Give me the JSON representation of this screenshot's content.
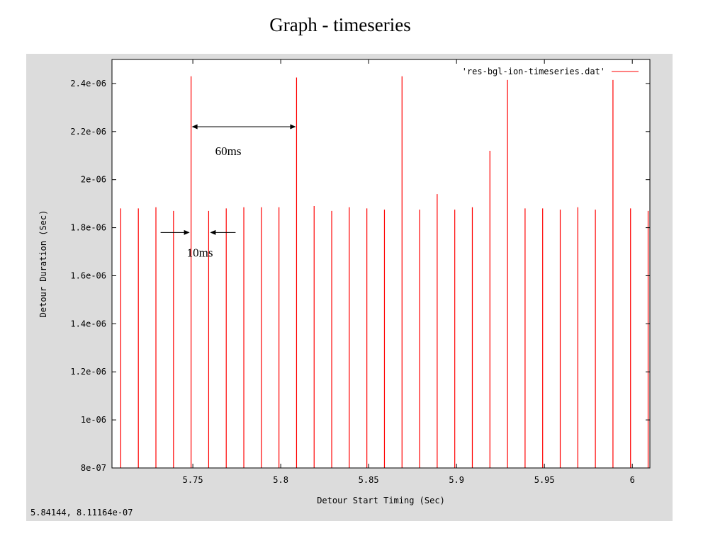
{
  "slide": {
    "title": "Graph - timeseries"
  },
  "status": {
    "coords": "5.84144,  8.11164e-07"
  },
  "colors": {
    "series": "#ff0000",
    "background": "#dcdcdc",
    "frame": "#000000"
  },
  "chart_data": {
    "type": "bar",
    "title": "",
    "xlabel": "Detour Start Timing (Sec)",
    "ylabel": "Detour Duration (Sec)",
    "xlim": [
      5.704,
      6.01
    ],
    "ylim": [
      8e-07,
      2.5e-06
    ],
    "xticks": [
      5.75,
      5.8,
      5.85,
      5.9,
      5.95,
      6
    ],
    "xtick_labels": [
      "5.75",
      "5.8",
      "5.85",
      "5.9",
      "5.95",
      "6"
    ],
    "yticks": [
      8e-07,
      1e-06,
      1.2e-06,
      1.4e-06,
      1.6e-06,
      1.8e-06,
      2e-06,
      2.2e-06,
      2.4e-06
    ],
    "ytick_labels": [
      "8e-07",
      "1e-06",
      "1.2e-06",
      "1.4e-06",
      "1.6e-06",
      "1.8e-06",
      "2e-06",
      "2.2e-06",
      "2.4e-06"
    ],
    "legend": {
      "position": "top-right",
      "label": "'res-bgl-ion-timeseries.dat'"
    },
    "series": [
      {
        "name": "'res-bgl-ion-timeseries.dat'",
        "x": [
          5.709,
          5.719,
          5.729,
          5.739,
          5.749,
          5.759,
          5.769,
          5.779,
          5.789,
          5.799,
          5.809,
          5.819,
          5.829,
          5.839,
          5.849,
          5.859,
          5.869,
          5.879,
          5.889,
          5.899,
          5.909,
          5.919,
          5.929,
          5.939,
          5.949,
          5.959,
          5.969,
          5.979,
          5.989,
          5.999,
          6.009
        ],
        "values": [
          1.88e-06,
          1.88e-06,
          1.885e-06,
          1.87e-06,
          2.43e-06,
          1.87e-06,
          1.88e-06,
          1.885e-06,
          1.885e-06,
          1.885e-06,
          2.425e-06,
          1.89e-06,
          1.87e-06,
          1.885e-06,
          1.88e-06,
          1.875e-06,
          2.43e-06,
          1.875e-06,
          1.94e-06,
          1.875e-06,
          1.885e-06,
          2.12e-06,
          2.415e-06,
          1.88e-06,
          1.88e-06,
          1.875e-06,
          1.885e-06,
          1.875e-06,
          2.415e-06,
          1.88e-06,
          1.87e-06
        ]
      }
    ],
    "annotations": [
      {
        "text": "60ms",
        "x_from": 5.749,
        "x_to": 5.809,
        "y": 2.22e-06,
        "arrow": "double"
      },
      {
        "text": "10ms",
        "x_from": 5.749,
        "x_to": 5.759,
        "y": 1.78e-06,
        "arrow": "converging"
      }
    ]
  }
}
